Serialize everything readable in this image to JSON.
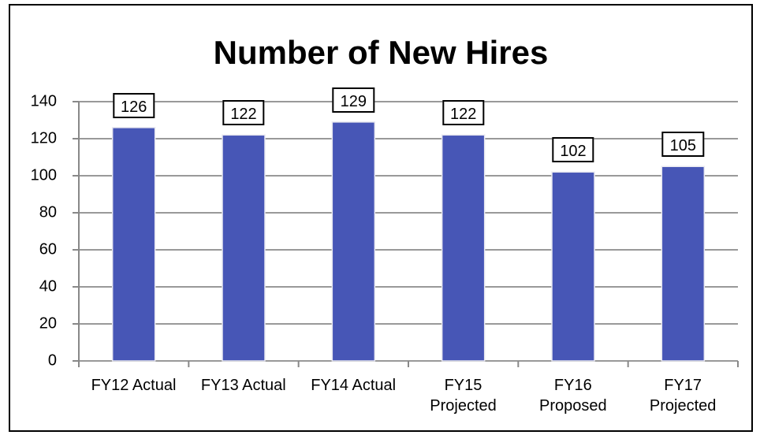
{
  "chart_data": {
    "type": "bar",
    "title": "Number of New Hires",
    "categories": [
      "FY12 Actual",
      "FY13 Actual",
      "FY14 Actual",
      "FY15\nProjected",
      "FY16\nProposed",
      "FY17\nProjected"
    ],
    "values": [
      126,
      122,
      129,
      122,
      102,
      105
    ],
    "color": "#4756b6",
    "ylim": [
      0,
      140
    ],
    "yticks": [
      0,
      20,
      40,
      60,
      80,
      100,
      120,
      140
    ],
    "grid": true
  }
}
